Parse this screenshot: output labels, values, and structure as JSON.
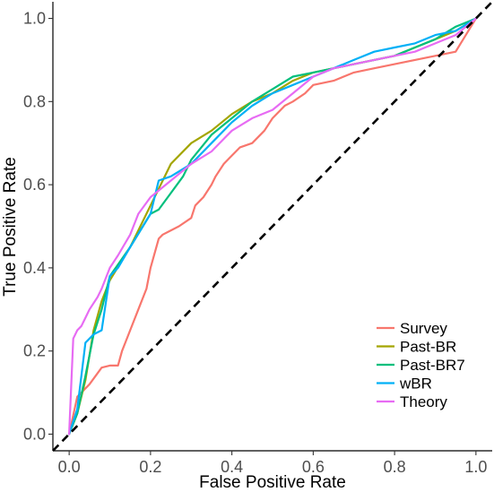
{
  "chart_data": {
    "type": "line",
    "title": "",
    "xlabel": "False Positive Rate",
    "ylabel": "True Positive Rate",
    "xlim": [
      -0.04,
      1.04
    ],
    "ylim": [
      -0.04,
      1.04
    ],
    "x_ticks": [
      "0.0",
      "0.2",
      "0.4",
      "0.6",
      "0.8",
      "1.0"
    ],
    "y_ticks": [
      "0.0",
      "0.2",
      "0.4",
      "0.6",
      "0.8",
      "1.0"
    ],
    "grid": false,
    "legend_position": "bottom-right",
    "reference_line": {
      "style": "dashed",
      "color": "#000000",
      "x": [
        -0.04,
        1.04
      ],
      "y": [
        -0.04,
        1.04
      ]
    },
    "series": [
      {
        "name": "Survey",
        "color": "#F8766D",
        "x": [
          0.0,
          0.02,
          0.05,
          0.08,
          0.1,
          0.12,
          0.13,
          0.15,
          0.17,
          0.19,
          0.2,
          0.22,
          0.23,
          0.25,
          0.27,
          0.3,
          0.31,
          0.33,
          0.35,
          0.36,
          0.38,
          0.4,
          0.42,
          0.45,
          0.48,
          0.5,
          0.53,
          0.55,
          0.58,
          0.6,
          0.65,
          0.7,
          0.75,
          0.8,
          0.85,
          0.9,
          0.95,
          1.0
        ],
        "y": [
          0.0,
          0.09,
          0.12,
          0.16,
          0.165,
          0.165,
          0.2,
          0.25,
          0.3,
          0.35,
          0.4,
          0.47,
          0.48,
          0.49,
          0.5,
          0.52,
          0.55,
          0.57,
          0.6,
          0.62,
          0.65,
          0.67,
          0.69,
          0.7,
          0.73,
          0.76,
          0.79,
          0.8,
          0.82,
          0.84,
          0.85,
          0.87,
          0.88,
          0.89,
          0.9,
          0.91,
          0.92,
          1.0
        ]
      },
      {
        "name": "Past-BR",
        "color": "#A3A500",
        "x": [
          0.0,
          0.02,
          0.04,
          0.06,
          0.08,
          0.1,
          0.15,
          0.2,
          0.25,
          0.3,
          0.35,
          0.4,
          0.45,
          0.5,
          0.55,
          0.6,
          0.65,
          0.7,
          0.75,
          0.8,
          0.85,
          0.9,
          0.95,
          1.0
        ],
        "y": [
          0.0,
          0.05,
          0.13,
          0.25,
          0.32,
          0.37,
          0.45,
          0.55,
          0.65,
          0.7,
          0.73,
          0.77,
          0.8,
          0.82,
          0.85,
          0.87,
          0.88,
          0.89,
          0.9,
          0.91,
          0.93,
          0.95,
          0.97,
          1.0
        ]
      },
      {
        "name": "Past-BR7",
        "color": "#00BF7D",
        "x": [
          0.0,
          0.02,
          0.04,
          0.06,
          0.08,
          0.1,
          0.15,
          0.2,
          0.22,
          0.25,
          0.28,
          0.3,
          0.35,
          0.4,
          0.45,
          0.5,
          0.55,
          0.6,
          0.65,
          0.7,
          0.75,
          0.8,
          0.85,
          0.9,
          0.95,
          1.0
        ],
        "y": [
          0.0,
          0.05,
          0.14,
          0.24,
          0.3,
          0.38,
          0.45,
          0.53,
          0.54,
          0.58,
          0.62,
          0.66,
          0.72,
          0.76,
          0.8,
          0.83,
          0.86,
          0.87,
          0.88,
          0.89,
          0.9,
          0.91,
          0.93,
          0.95,
          0.98,
          1.0
        ]
      },
      {
        "name": "wBR",
        "color": "#00B0F6",
        "x": [
          0.0,
          0.02,
          0.04,
          0.06,
          0.08,
          0.1,
          0.12,
          0.15,
          0.2,
          0.22,
          0.25,
          0.3,
          0.35,
          0.4,
          0.45,
          0.5,
          0.55,
          0.6,
          0.65,
          0.7,
          0.75,
          0.8,
          0.85,
          0.9,
          0.95,
          1.0
        ],
        "y": [
          0.0,
          0.06,
          0.22,
          0.24,
          0.25,
          0.38,
          0.4,
          0.45,
          0.53,
          0.61,
          0.62,
          0.65,
          0.7,
          0.75,
          0.79,
          0.82,
          0.84,
          0.86,
          0.88,
          0.9,
          0.92,
          0.93,
          0.94,
          0.96,
          0.97,
          1.0
        ]
      },
      {
        "name": "Theory",
        "color": "#E76BF3",
        "x": [
          0.0,
          0.01,
          0.02,
          0.03,
          0.04,
          0.05,
          0.07,
          0.08,
          0.1,
          0.12,
          0.15,
          0.17,
          0.2,
          0.25,
          0.3,
          0.35,
          0.4,
          0.45,
          0.5,
          0.55,
          0.6,
          0.65,
          0.7,
          0.75,
          0.8,
          0.85,
          0.9,
          0.95,
          1.0
        ],
        "y": [
          0.0,
          0.23,
          0.25,
          0.26,
          0.28,
          0.3,
          0.33,
          0.35,
          0.4,
          0.43,
          0.48,
          0.53,
          0.57,
          0.61,
          0.65,
          0.68,
          0.73,
          0.76,
          0.78,
          0.82,
          0.86,
          0.88,
          0.89,
          0.9,
          0.91,
          0.92,
          0.94,
          0.96,
          1.0
        ]
      }
    ]
  }
}
